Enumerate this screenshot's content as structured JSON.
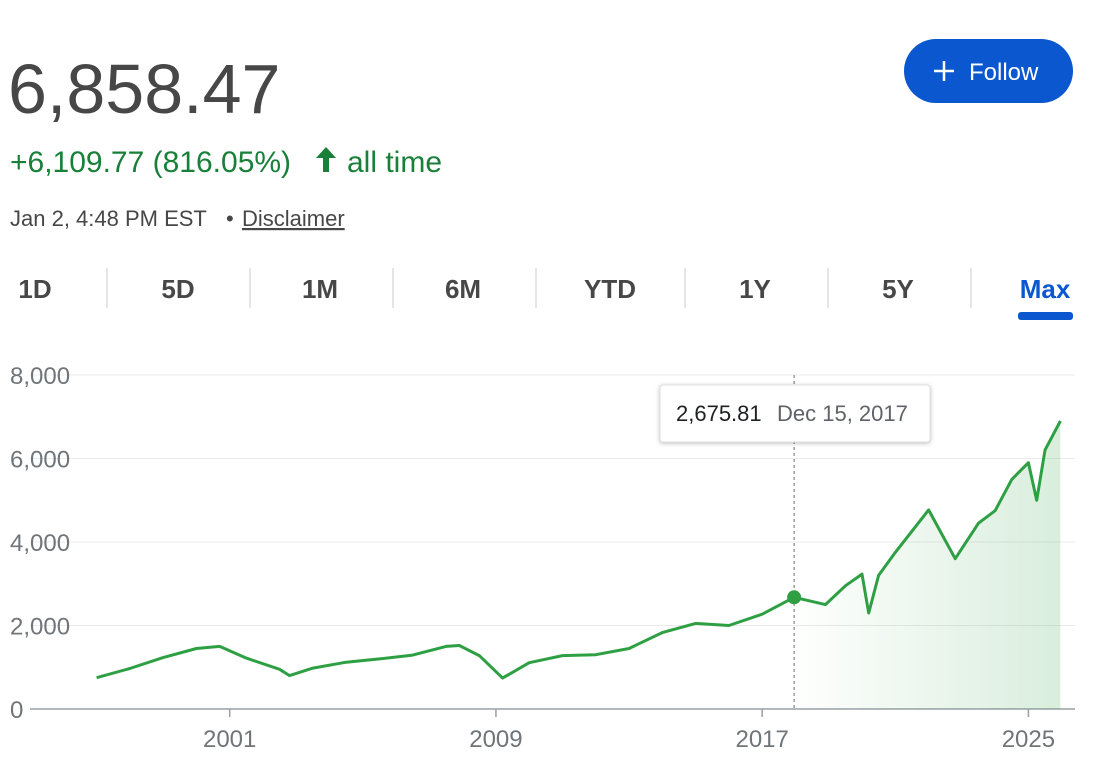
{
  "header": {
    "price": "6,858.47",
    "change": "+6,109.77 (816.05%)",
    "period": "all time",
    "timestamp": "Jan 2, 4:48 PM EST",
    "separator": "•",
    "disclaimer": "Disclaimer",
    "follow": "Follow"
  },
  "tabs": [
    "1D",
    "5D",
    "1M",
    "6M",
    "YTD",
    "1Y",
    "5Y",
    "Max"
  ],
  "selected_tab": "Max",
  "chart_data": {
    "type": "line",
    "x": [
      1997.0,
      1998.0,
      1999.0,
      2000.0,
      2000.7,
      2001.5,
      2002.5,
      2002.8,
      2003.5,
      2004.5,
      2005.5,
      2006.5,
      2007.5,
      2007.9,
      2008.5,
      2009.2,
      2010.0,
      2011.0,
      2012.0,
      2013.0,
      2014.0,
      2015.0,
      2016.0,
      2017.0,
      2017.96,
      2018.9,
      2019.5,
      2020.0,
      2020.2,
      2020.5,
      2021.0,
      2022.0,
      2022.8,
      2023.5,
      2024.0,
      2024.5,
      2025.0,
      2025.25,
      2025.5,
      2025.96
    ],
    "series": [
      {
        "color": "#2ea043",
        "values": [
          750,
          970,
          1230,
          1450,
          1500,
          1220,
          950,
          800,
          980,
          1120,
          1200,
          1290,
          1500,
          1520,
          1280,
          740,
          1110,
          1280,
          1300,
          1450,
          1830,
          2050,
          2000,
          2270,
          2675.81,
          2500,
          2950,
          3230,
          2300,
          3200,
          3750,
          4770,
          3600,
          4450,
          4750,
          5500,
          5900,
          5000,
          6200,
          6900
        ]
      }
    ],
    "xlim": [
      1995.0,
      2026.4
    ],
    "xticks": [
      2001,
      2009,
      2017,
      2025
    ],
    "ylim": [
      0,
      8000
    ],
    "yticks": [
      0,
      {
        "value": 2000,
        "label": "2,000"
      },
      {
        "value": 4000,
        "label": "4,000"
      },
      {
        "value": 6000,
        "label": "6,000"
      },
      {
        "value": 8000,
        "label": "8,000"
      }
    ],
    "grid": true,
    "tooltip": {
      "value": 2675.81,
      "label": "2,675.81",
      "date": "Dec 15, 2017",
      "x": 2017.96
    }
  }
}
